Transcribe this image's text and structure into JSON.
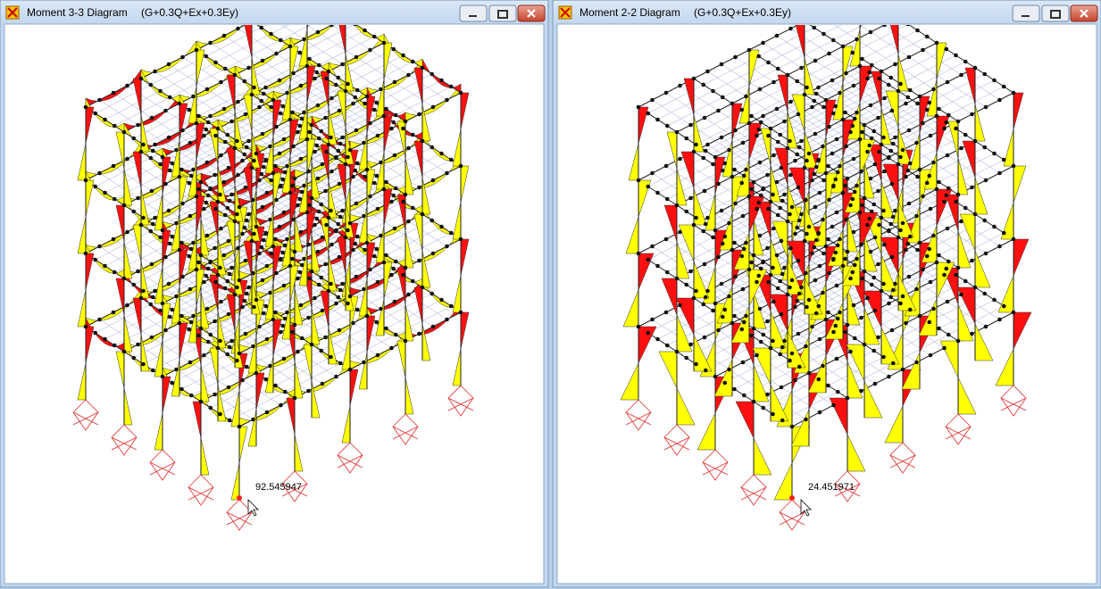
{
  "windows": [
    {
      "title": "Moment 3-3 Diagram",
      "combo": "(G+0.3Q+Ex+0.3Ey)",
      "readout": "92.545947"
    },
    {
      "title": "Moment 2-2 Diagram",
      "combo": "(G+0.3Q+Ex+0.3Ey)",
      "readout": "24.451971"
    }
  ]
}
